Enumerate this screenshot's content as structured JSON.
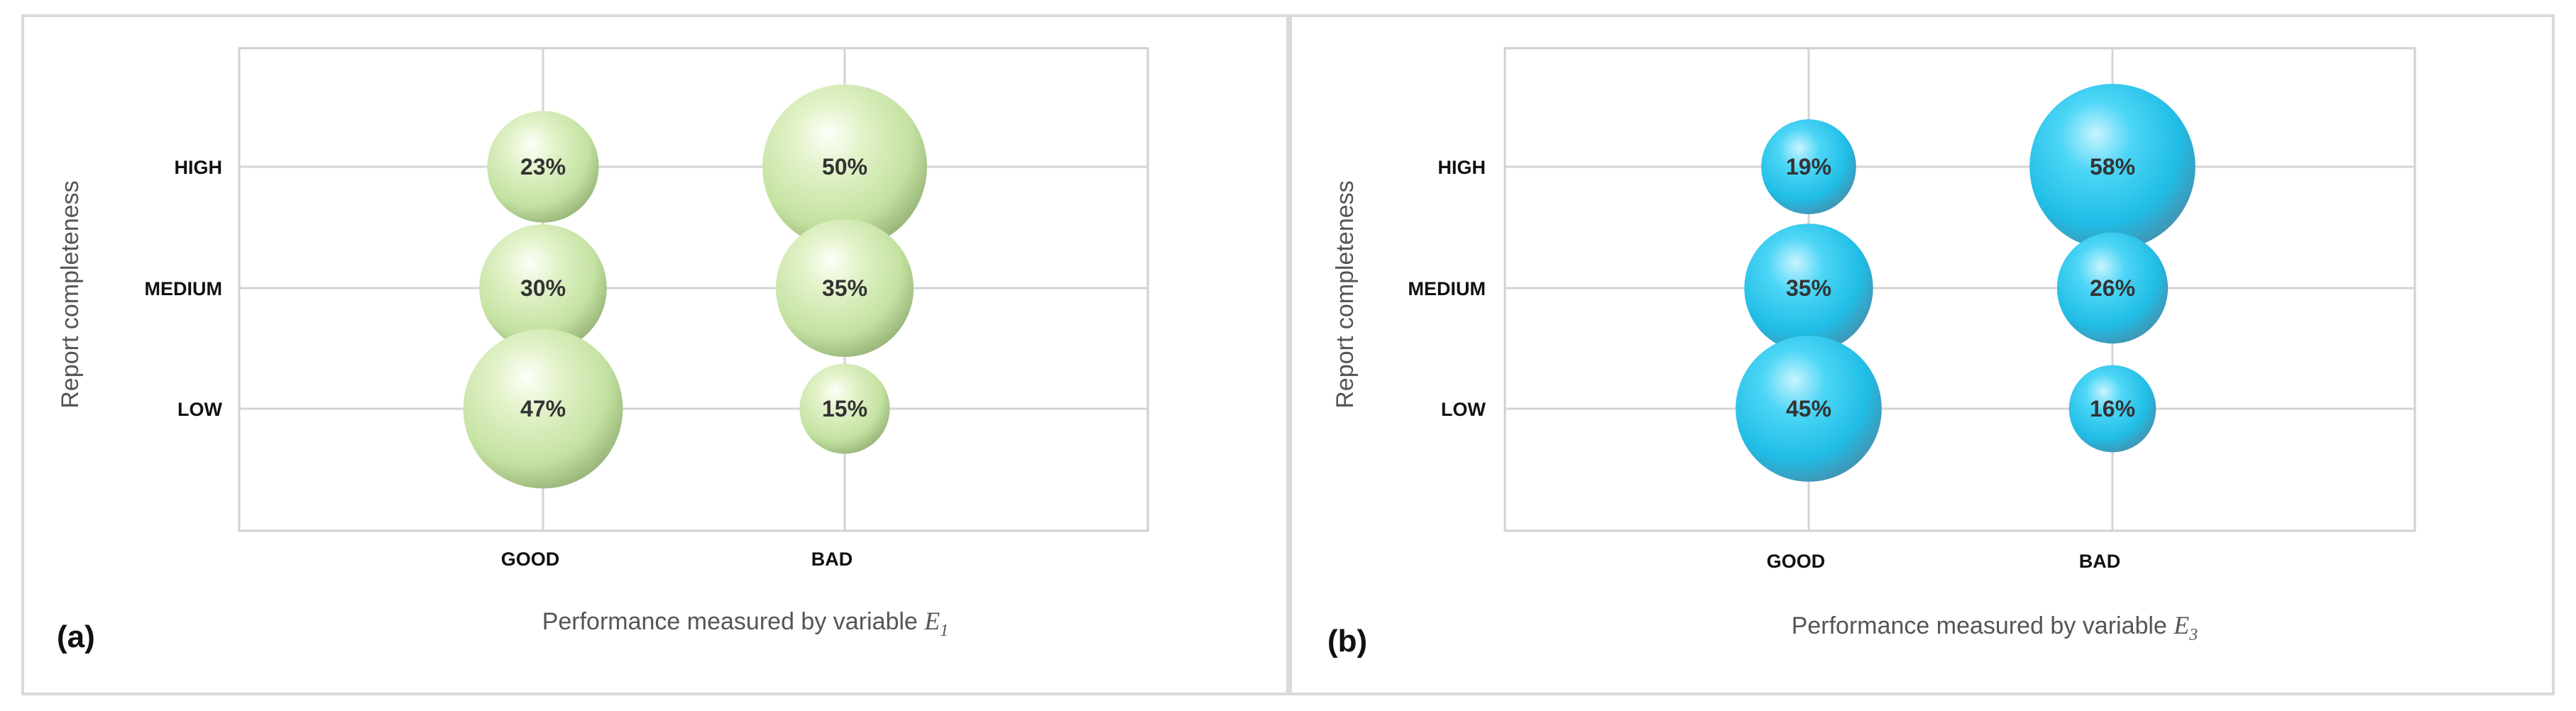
{
  "chart_data": [
    {
      "type": "bubble",
      "panel_label": "(a)",
      "xlabel": "Performance measured by variable",
      "xlabel_variable": "E",
      "xlabel_subscript": "1",
      "ylabel": "Report completeness",
      "categories_x": [
        "GOOD",
        "BAD"
      ],
      "categories_y": [
        "HIGH",
        "MEDIUM",
        "LOW"
      ],
      "color": "#c6e3a6",
      "points": [
        {
          "x": "GOOD",
          "y": "HIGH",
          "value": 23,
          "label": "23%"
        },
        {
          "x": "BAD",
          "y": "HIGH",
          "value": 50,
          "label": "50%"
        },
        {
          "x": "GOOD",
          "y": "MEDIUM",
          "value": 30,
          "label": "30%"
        },
        {
          "x": "BAD",
          "y": "MEDIUM",
          "value": 35,
          "label": "35%"
        },
        {
          "x": "GOOD",
          "y": "LOW",
          "value": 47,
          "label": "47%"
        },
        {
          "x": "BAD",
          "y": "LOW",
          "value": 15,
          "label": "15%"
        }
      ]
    },
    {
      "type": "bubble",
      "panel_label": "(b)",
      "xlabel": "Performance measured by variable",
      "xlabel_variable": "E",
      "xlabel_subscript": "3",
      "ylabel": "Report completeness",
      "categories_x": [
        "GOOD",
        "BAD"
      ],
      "categories_y": [
        "HIGH",
        "MEDIUM",
        "LOW"
      ],
      "color": "#29c4ea",
      "points": [
        {
          "x": "GOOD",
          "y": "HIGH",
          "value": 19,
          "label": "19%"
        },
        {
          "x": "BAD",
          "y": "HIGH",
          "value": 58,
          "label": "58%"
        },
        {
          "x": "GOOD",
          "y": "MEDIUM",
          "value": 35,
          "label": "35%"
        },
        {
          "x": "BAD",
          "y": "MEDIUM",
          "value": 26,
          "label": "26%"
        },
        {
          "x": "GOOD",
          "y": "LOW",
          "value": 45,
          "label": "45%"
        },
        {
          "x": "BAD",
          "y": "LOW",
          "value": 16,
          "label": "16%"
        }
      ]
    }
  ]
}
